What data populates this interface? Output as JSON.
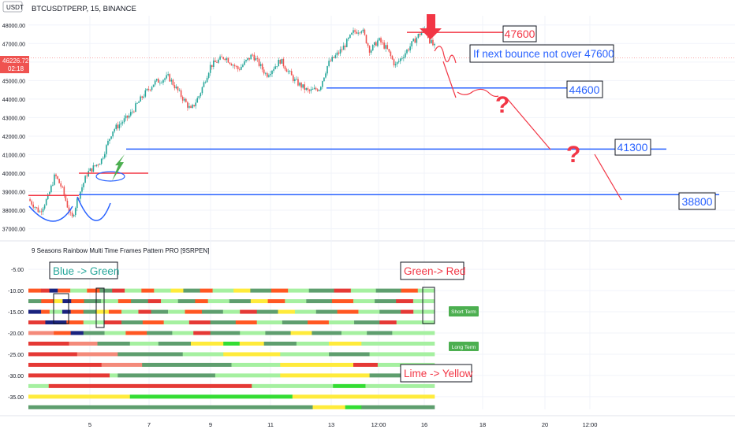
{
  "header": {
    "symbol": "BTCUSDTPERP, 15, BINANCE",
    "currency_badge": "USDT",
    "price_badge": "46226.72",
    "countdown_badge": "02:18"
  },
  "indicator": {
    "title": "9 Seasons Rainbow Multi Time Frames Pattern PRO [9SRPEN]"
  },
  "annotations": {
    "blue_green": "Blue -> Green",
    "green_red": "Green-> Red",
    "lime_yellow": "Lime -> Yellow",
    "bounce_note": "If next bounce not over 47600",
    "short_term": "Short Term",
    "long_term": "Long Term",
    "question": "?"
  },
  "colors": {
    "up_candle": "#26a69a",
    "down_candle": "#ef5350",
    "red_line": "#f23645",
    "blue_line": "#2962ff",
    "note_text": "#2962ff",
    "badge_green": "#4caf50",
    "arrow_red": "#f23645"
  },
  "chart_data": [
    {
      "type": "candlestick",
      "title": "BTCUSDTPERP, 15, BINANCE",
      "x_tick_labels": [
        "5",
        "7",
        "9",
        "11",
        "13",
        "12:00",
        "16",
        "18",
        "20",
        "12:00"
      ],
      "y_tick_labels": [
        "37000.00",
        "38000.00",
        "39000.00",
        "40000.00",
        "41000.00",
        "42000.00",
        "43000.00",
        "44000.00",
        "45000.00",
        "46000.00",
        "47000.00",
        "48000.00"
      ],
      "ylim": [
        36600,
        48500
      ],
      "current_price": 46226.72,
      "levels": [
        {
          "label": "47600",
          "value": 47600,
          "color": "red"
        },
        {
          "label": "44600",
          "value": 44600,
          "color": "blue"
        },
        {
          "label": "41300",
          "value": 41300,
          "color": "blue"
        },
        {
          "label": "38800",
          "value": 38800,
          "color": "blue"
        }
      ],
      "support_lines": [
        {
          "value": 38800,
          "color": "red"
        },
        {
          "value": 40000,
          "color": "red"
        }
      ],
      "price_path": [
        [
          0,
          38600
        ],
        [
          0.08,
          37900
        ],
        [
          0.14,
          38700
        ],
        [
          0.19,
          39900
        ],
        [
          0.24,
          39200
        ],
        [
          0.28,
          38200
        ],
        [
          0.31,
          37500
        ],
        [
          0.35,
          38600
        ],
        [
          0.42,
          40000
        ],
        [
          0.52,
          40700
        ],
        [
          0.6,
          42300
        ],
        [
          0.72,
          43100
        ],
        [
          0.82,
          44200
        ],
        [
          0.9,
          44900
        ],
        [
          1.0,
          45200
        ],
        [
          1.08,
          44300
        ],
        [
          1.16,
          43400
        ],
        [
          1.22,
          44200
        ],
        [
          1.3,
          45800
        ],
        [
          1.4,
          46300
        ],
        [
          1.5,
          45600
        ],
        [
          1.6,
          46400
        ],
        [
          1.7,
          45300
        ],
        [
          1.8,
          46100
        ],
        [
          1.9,
          45000
        ],
        [
          2.0,
          44400
        ],
        [
          2.08,
          44600
        ],
        [
          2.14,
          45900
        ],
        [
          2.24,
          46700
        ],
        [
          2.32,
          47600
        ],
        [
          2.38,
          47800
        ],
        [
          2.44,
          46600
        ],
        [
          2.5,
          47200
        ],
        [
          2.56,
          46700
        ],
        [
          2.62,
          45800
        ],
        [
          2.7,
          46600
        ],
        [
          2.78,
          47400
        ],
        [
          2.83,
          47800
        ],
        [
          2.87,
          47100
        ],
        [
          2.9,
          46800
        ]
      ]
    },
    {
      "type": "heatmap",
      "title": "9 Seasons Rainbow Multi Time Frames Pattern PRO [9SRPEN]",
      "y_tick_labels": [
        "-5.00",
        "-10.00",
        "-15.00",
        "-20.00",
        "-25.00",
        "-30.00",
        "-35.00"
      ],
      "ylim": [
        -38,
        -2
      ],
      "rows": [
        {
          "y": -10,
          "segments": [
            [
              "orange",
              0.03
            ],
            [
              "red",
              0.02
            ],
            [
              "navy",
              0.02
            ],
            [
              "orange",
              0.03
            ],
            [
              "lightgreen",
              0.04
            ],
            [
              "orange",
              0.03
            ],
            [
              "green",
              0.03
            ],
            [
              "red",
              0.03
            ],
            [
              "lightgreen",
              0.04
            ],
            [
              "orange",
              0.03
            ],
            [
              "lightgreen",
              0.04
            ],
            [
              "yellow",
              0.03
            ],
            [
              "green",
              0.04
            ],
            [
              "orange",
              0.03
            ],
            [
              "lightgreen",
              0.05
            ],
            [
              "yellow",
              0.04
            ],
            [
              "green",
              0.05
            ],
            [
              "orange",
              0.04
            ],
            [
              "lightgreen",
              0.05
            ],
            [
              "green",
              0.06
            ],
            [
              "red",
              0.04
            ],
            [
              "lightgreen",
              0.06
            ],
            [
              "green",
              0.06
            ],
            [
              "orange",
              0.04
            ],
            [
              "lightgreen",
              0.04
            ]
          ]
        },
        {
          "y": -12.5,
          "segments": [
            [
              "green",
              0.03
            ],
            [
              "orange",
              0.03
            ],
            [
              "yellow",
              0.02
            ],
            [
              "navy",
              0.02
            ],
            [
              "orange",
              0.03
            ],
            [
              "green",
              0.04
            ],
            [
              "lightgreen",
              0.04
            ],
            [
              "orange",
              0.03
            ],
            [
              "green",
              0.04
            ],
            [
              "red",
              0.03
            ],
            [
              "lightgreen",
              0.04
            ],
            [
              "green",
              0.04
            ],
            [
              "orange",
              0.03
            ],
            [
              "lightgreen",
              0.05
            ],
            [
              "green",
              0.05
            ],
            [
              "yellow",
              0.04
            ],
            [
              "orange",
              0.04
            ],
            [
              "lightgreen",
              0.05
            ],
            [
              "green",
              0.06
            ],
            [
              "orange",
              0.05
            ],
            [
              "lightgreen",
              0.05
            ],
            [
              "green",
              0.05
            ],
            [
              "red",
              0.04
            ],
            [
              "lightgreen",
              0.05
            ]
          ]
        },
        {
          "y": -15,
          "segments": [
            [
              "navy",
              0.03
            ],
            [
              "orange",
              0.02
            ],
            [
              "lightgreen",
              0.03
            ],
            [
              "navy",
              0.02
            ],
            [
              "orange",
              0.03
            ],
            [
              "green",
              0.03
            ],
            [
              "yellow",
              0.03
            ],
            [
              "orange",
              0.03
            ],
            [
              "lightgreen",
              0.04
            ],
            [
              "red",
              0.03
            ],
            [
              "green",
              0.04
            ],
            [
              "lightgreen",
              0.04
            ],
            [
              "orange",
              0.04
            ],
            [
              "green",
              0.05
            ],
            [
              "lightgreen",
              0.04
            ],
            [
              "red",
              0.04
            ],
            [
              "green",
              0.05
            ],
            [
              "yellow",
              0.04
            ],
            [
              "lightgreen",
              0.05
            ],
            [
              "green",
              0.05
            ],
            [
              "orange",
              0.05
            ],
            [
              "lightgreen",
              0.05
            ],
            [
              "green",
              0.05
            ],
            [
              "red",
              0.03
            ],
            [
              "lightgreen",
              0.05
            ]
          ]
        },
        {
          "y": -17.5,
          "segments": [
            [
              "red",
              0.04
            ],
            [
              "navy",
              0.05
            ],
            [
              "orange",
              0.04
            ],
            [
              "lightgreen",
              0.05
            ],
            [
              "red",
              0.04
            ],
            [
              "green",
              0.05
            ],
            [
              "orange",
              0.05
            ],
            [
              "lightgreen",
              0.06
            ],
            [
              "red",
              0.05
            ],
            [
              "green",
              0.06
            ],
            [
              "orange",
              0.05
            ],
            [
              "lightgreen",
              0.06
            ],
            [
              "green",
              0.06
            ],
            [
              "orange",
              0.05
            ],
            [
              "lightgreen",
              0.06
            ],
            [
              "green",
              0.06
            ],
            [
              "red",
              0.04
            ],
            [
              "lightgreen",
              0.09
            ]
          ]
        },
        {
          "y": -20,
          "segments": [
            [
              "salmon",
              0.06
            ],
            [
              "orange",
              0.04
            ],
            [
              "navy",
              0.03
            ],
            [
              "green",
              0.05
            ],
            [
              "lightgreen",
              0.05
            ],
            [
              "orange",
              0.05
            ],
            [
              "green",
              0.06
            ],
            [
              "lightgreen",
              0.05
            ],
            [
              "red",
              0.04
            ],
            [
              "green",
              0.07
            ],
            [
              "lightgreen",
              0.06
            ],
            [
              "green",
              0.06
            ],
            [
              "yellow",
              0.05
            ],
            [
              "green",
              0.07
            ],
            [
              "lightgreen",
              0.06
            ],
            [
              "green",
              0.06
            ],
            [
              "lightgreen",
              0.1
            ]
          ]
        },
        {
          "y": -22.5,
          "segments": [
            [
              "red",
              0.1
            ],
            [
              "salmon",
              0.07
            ],
            [
              "green",
              0.08
            ],
            [
              "lightgreen",
              0.07
            ],
            [
              "green",
              0.08
            ],
            [
              "yellow",
              0.08
            ],
            [
              "lime",
              0.04
            ],
            [
              "yellow",
              0.06
            ],
            [
              "green",
              0.08
            ],
            [
              "lightgreen",
              0.08
            ],
            [
              "yellow",
              0.08
            ],
            [
              "lightgreen",
              0.18
            ]
          ]
        },
        {
          "y": -25,
          "segments": [
            [
              "red",
              0.12
            ],
            [
              "salmon",
              0.1
            ],
            [
              "green",
              0.16
            ],
            [
              "lightgreen",
              0.1
            ],
            [
              "yellow",
              0.14
            ],
            [
              "lightgreen",
              0.12
            ],
            [
              "green",
              0.1
            ],
            [
              "lightgreen",
              0.16
            ]
          ]
        },
        {
          "y": -27.5,
          "segments": [
            [
              "red",
              0.18
            ],
            [
              "salmon",
              0.1
            ],
            [
              "green",
              0.22
            ],
            [
              "lightgreen",
              0.12
            ],
            [
              "yellow",
              0.18
            ],
            [
              "red",
              0.06
            ],
            [
              "lightgreen",
              0.14
            ]
          ]
        },
        {
          "y": -30,
          "segments": [
            [
              "red",
              0.2
            ],
            [
              "lightgreen",
              0.02
            ],
            [
              "green",
              0.24
            ],
            [
              "lightgreen",
              0.16
            ],
            [
              "yellow",
              0.22
            ],
            [
              "green",
              0.16
            ]
          ]
        },
        {
          "y": -32.5,
          "segments": [
            [
              "lightgreen",
              0.05
            ],
            [
              "red",
              0.5
            ],
            [
              "lightgreen",
              0.2
            ],
            [
              "lime",
              0.08
            ],
            [
              "lightgreen",
              0.17
            ]
          ]
        },
        {
          "y": -35,
          "segments": [
            [
              "yellow",
              0.25
            ],
            [
              "lime",
              0.4
            ],
            [
              "yellow",
              0.35
            ]
          ]
        },
        {
          "y": -37.5,
          "segments": [
            [
              "green",
              0.7
            ],
            [
              "yellow",
              0.08
            ],
            [
              "lime",
              0.04
            ],
            [
              "green",
              0.18
            ]
          ]
        }
      ]
    }
  ]
}
